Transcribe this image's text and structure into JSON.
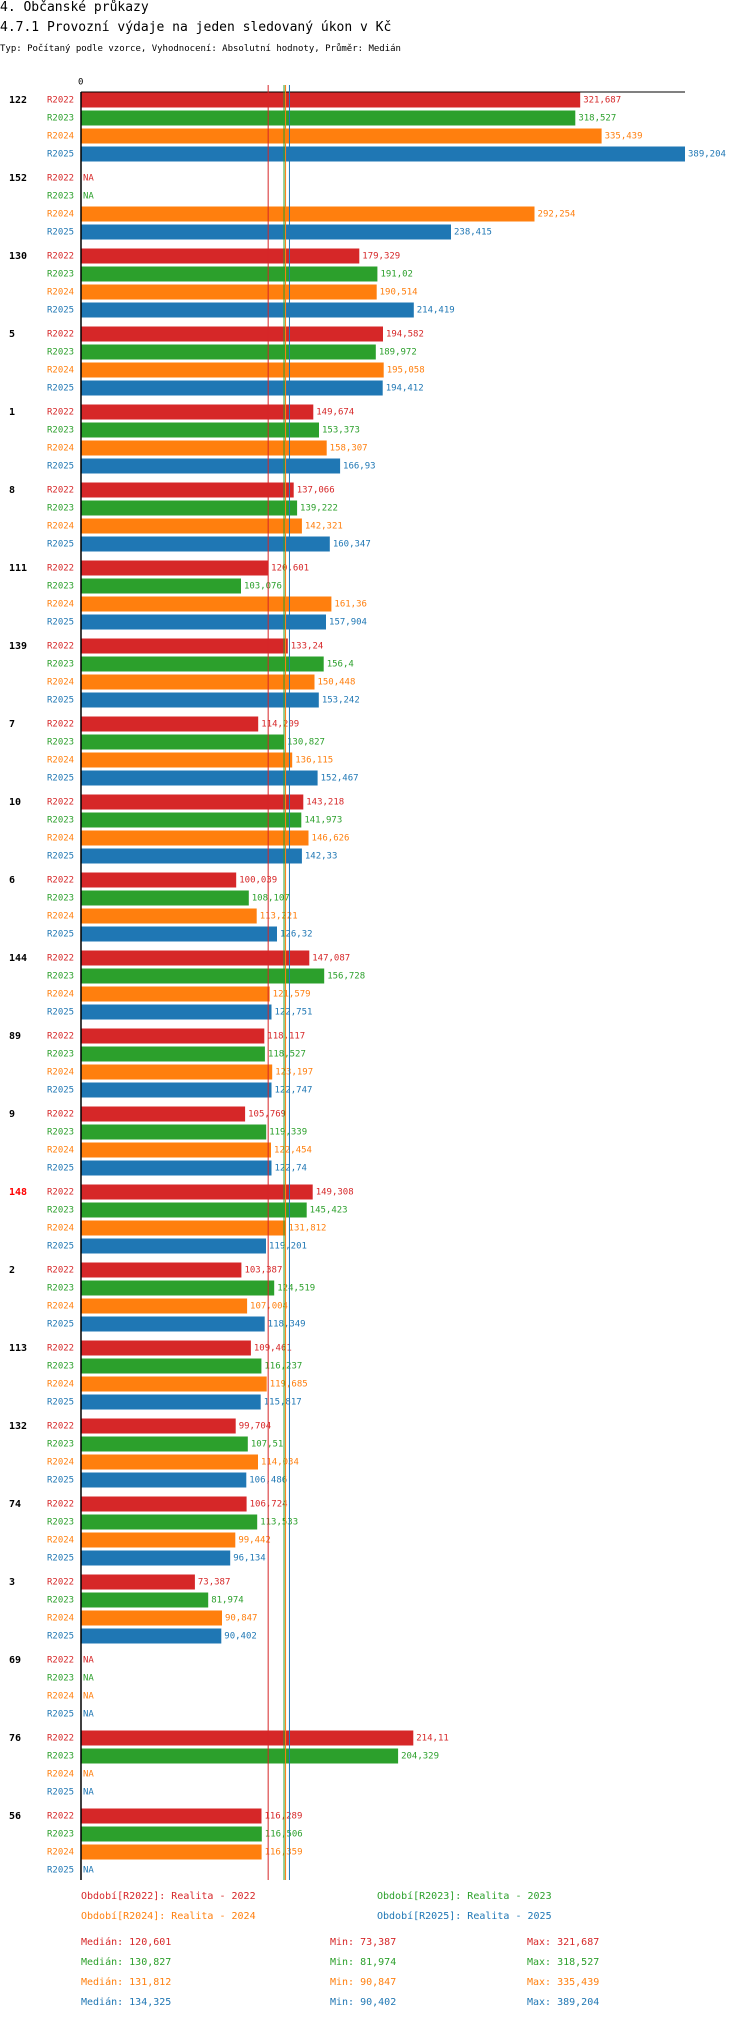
{
  "header": {
    "section": "4. Občanské průkazy",
    "subtitle": "4.7.1 Provozní výdaje na jeden sledovaný úkon v Kč",
    "params": "Typ: Počítaný podle vzorce, Vyhodnocení: Absolutní hodnoty, Průměr: Medián"
  },
  "colors": {
    "R2022": "#d62728",
    "R2023": "#2ca02c",
    "R2024": "#ff7f0e",
    "R2025": "#1f77b4",
    "highlight_group": "#ff0000",
    "axis": "#000000"
  },
  "chart_data": {
    "type": "bar",
    "orientation": "horizontal",
    "axis_zero_label": "0",
    "xlim": [
      0,
      389.204
    ],
    "na_label": "NA",
    "series_names": [
      "R2022",
      "R2023",
      "R2024",
      "R2025"
    ],
    "highlighted_group": "148",
    "groups": [
      {
        "label": "122",
        "values": [
          321.687,
          318.527,
          335.439,
          389.204
        ],
        "labels": [
          "321,687",
          "318,527",
          "335,439",
          "389,204"
        ]
      },
      {
        "label": "152",
        "values": [
          null,
          null,
          292.254,
          238.415
        ],
        "labels": [
          "NA",
          "NA",
          "292,254",
          "238,415"
        ]
      },
      {
        "label": "130",
        "values": [
          179.329,
          191.02,
          190.514,
          214.419
        ],
        "labels": [
          "179,329",
          "191,02",
          "190,514",
          "214,419"
        ]
      },
      {
        "label": "5",
        "values": [
          194.582,
          189.972,
          195.058,
          194.412
        ],
        "labels": [
          "194,582",
          "189,972",
          "195,058",
          "194,412"
        ]
      },
      {
        "label": "1",
        "values": [
          149.674,
          153.373,
          158.307,
          166.93
        ],
        "labels": [
          "149,674",
          "153,373",
          "158,307",
          "166,93"
        ]
      },
      {
        "label": "8",
        "values": [
          137.066,
          139.222,
          142.321,
          160.347
        ],
        "labels": [
          "137,066",
          "139,222",
          "142,321",
          "160,347"
        ]
      },
      {
        "label": "111",
        "values": [
          120.601,
          103.076,
          161.36,
          157.904
        ],
        "labels": [
          "120,601",
          "103,076",
          "161,36",
          "157,904"
        ]
      },
      {
        "label": "139",
        "values": [
          133.24,
          156.4,
          150.448,
          153.242
        ],
        "labels": [
          "133,24",
          "156,4",
          "150,448",
          "153,242"
        ]
      },
      {
        "label": "7",
        "values": [
          114.209,
          130.827,
          136.115,
          152.467
        ],
        "labels": [
          "114,209",
          "130,827",
          "136,115",
          "152,467"
        ]
      },
      {
        "label": "10",
        "values": [
          143.218,
          141.973,
          146.626,
          142.33
        ],
        "labels": [
          "143,218",
          "141,973",
          "146,626",
          "142,33"
        ]
      },
      {
        "label": "6",
        "values": [
          100.039,
          108.107,
          113.221,
          126.32
        ],
        "labels": [
          "100,039",
          "108,107",
          "113,221",
          "126,32"
        ]
      },
      {
        "label": "144",
        "values": [
          147.087,
          156.728,
          121.579,
          122.751
        ],
        "labels": [
          "147,087",
          "156,728",
          "121,579",
          "122,751"
        ]
      },
      {
        "label": "89",
        "values": [
          118.117,
          118.527,
          123.197,
          122.747
        ],
        "labels": [
          "118,117",
          "118,527",
          "123,197",
          "122,747"
        ]
      },
      {
        "label": "9",
        "values": [
          105.769,
          119.339,
          122.454,
          122.74
        ],
        "labels": [
          "105,769",
          "119,339",
          "122,454",
          "122,74"
        ]
      },
      {
        "label": "148",
        "values": [
          149.308,
          145.423,
          131.812,
          119.201
        ],
        "labels": [
          "149,308",
          "145,423",
          "131,812",
          "119,201"
        ]
      },
      {
        "label": "2",
        "values": [
          103.387,
          124.519,
          107.004,
          118.349
        ],
        "labels": [
          "103,387",
          "124,519",
          "107,004",
          "118,349"
        ]
      },
      {
        "label": "113",
        "values": [
          109.461,
          116.237,
          119.685,
          115.817
        ],
        "labels": [
          "109,461",
          "116,237",
          "119,685",
          "115,817"
        ]
      },
      {
        "label": "132",
        "values": [
          99.704,
          107.51,
          114.034,
          106.486
        ],
        "labels": [
          "99,704",
          "107,51",
          "114,034",
          "106,486"
        ]
      },
      {
        "label": "74",
        "values": [
          106.724,
          113.533,
          99.442,
          96.134
        ],
        "labels": [
          "106,724",
          "113,533",
          "99,442",
          "96,134"
        ]
      },
      {
        "label": "3",
        "values": [
          73.387,
          81.974,
          90.847,
          90.402
        ],
        "labels": [
          "73,387",
          "81,974",
          "90,847",
          "90,402"
        ]
      },
      {
        "label": "69",
        "values": [
          null,
          null,
          null,
          null
        ],
        "labels": [
          "NA",
          "NA",
          "NA",
          "NA"
        ]
      },
      {
        "label": "76",
        "values": [
          214.11,
          204.329,
          null,
          null
        ],
        "labels": [
          "214,11",
          "204,329",
          "NA",
          "NA"
        ]
      },
      {
        "label": "56",
        "values": [
          116.289,
          116.506,
          116.359,
          null
        ],
        "labels": [
          "116,289",
          "116,506",
          "116,359",
          "NA"
        ]
      }
    ],
    "median_lines": [
      120.601,
      130.827,
      131.812,
      134.325
    ],
    "legend": [
      {
        "series": "R2022",
        "text": "Období[R2022]: Realita - 2022"
      },
      {
        "series": "R2023",
        "text": "Období[R2023]: Realita - 2023"
      },
      {
        "series": "R2024",
        "text": "Období[R2024]: Realita - 2024"
      },
      {
        "series": "R2025",
        "text": "Období[R2025]: Realita - 2025"
      }
    ],
    "stats": [
      {
        "series": "R2022",
        "median": "Medián: 120,601",
        "min": "Min: 73,387",
        "max": "Max: 321,687"
      },
      {
        "series": "R2023",
        "median": "Medián: 130,827",
        "min": "Min: 81,974",
        "max": "Max: 318,527"
      },
      {
        "series": "R2024",
        "median": "Medián: 131,812",
        "min": "Min: 90,847",
        "max": "Max: 335,439"
      },
      {
        "series": "R2025",
        "median": "Medián: 134,325",
        "min": "Min: 90,402",
        "max": "Max: 389,204"
      }
    ]
  }
}
